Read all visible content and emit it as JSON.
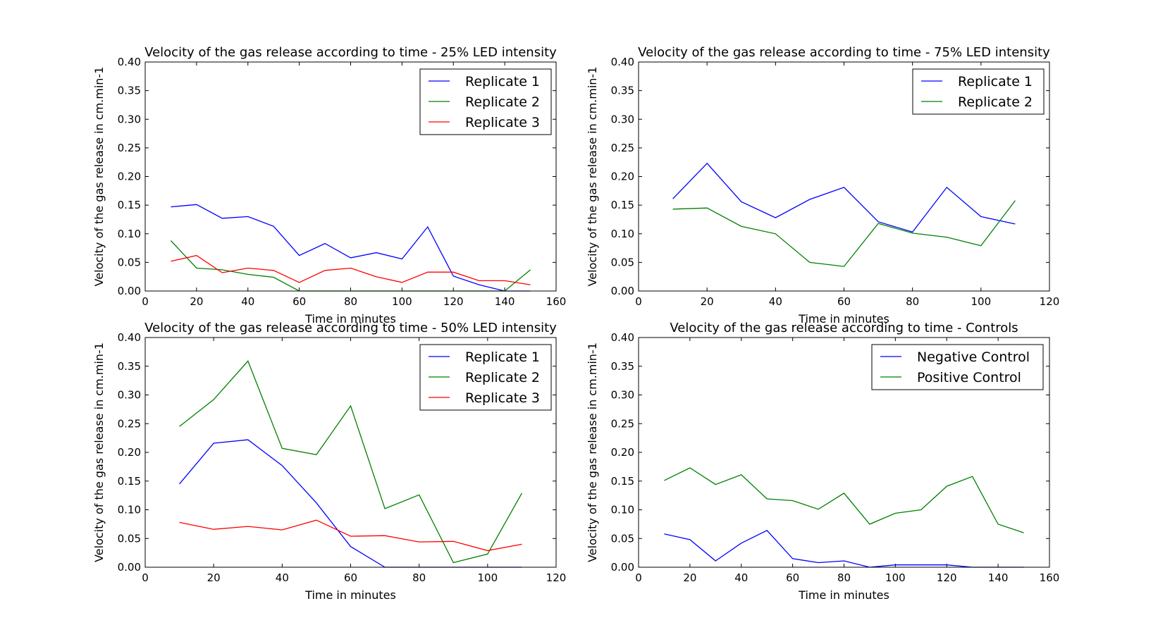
{
  "chart_data": [
    {
      "type": "line",
      "title": "Velocity of the gas release according to time - 25% LED intensity",
      "xlabel": "Time in minutes",
      "ylabel": "Velocity of the gas release in cm.min-1",
      "xlim": [
        0,
        160
      ],
      "ylim": [
        0,
        0.4
      ],
      "xticks": [
        0,
        20,
        40,
        60,
        80,
        100,
        120,
        140,
        160
      ],
      "xtick_labels": [
        "0",
        "20",
        "40",
        "60",
        "80",
        "100",
        "120",
        "140",
        "160"
      ],
      "yticks": [
        0,
        0.05,
        0.1,
        0.15,
        0.2,
        0.25,
        0.3,
        0.35,
        0.4
      ],
      "ytick_labels": [
        "0.00",
        "0.05",
        "0.10",
        "0.15",
        "0.20",
        "0.25",
        "0.30",
        "0.35",
        "0.40"
      ],
      "grid": false,
      "legend_position": "upper right",
      "x": [
        10,
        20,
        30,
        40,
        50,
        60,
        70,
        80,
        90,
        100,
        110,
        120,
        130,
        140,
        150
      ],
      "series": [
        {
          "name": "Replicate 1",
          "color": "#0000ff",
          "values": [
            0.147,
            0.151,
            0.127,
            0.13,
            0.113,
            0.062,
            0.083,
            0.058,
            0.067,
            0.056,
            0.112,
            0.026,
            0.011,
            0.0,
            0.0
          ]
        },
        {
          "name": "Replicate 2",
          "color": "#008000",
          "values": [
            0.088,
            0.04,
            0.037,
            0.029,
            0.024,
            0.0,
            0.0,
            0.0,
            0.0,
            0.0,
            0.0,
            0.0,
            0.0,
            0.0,
            0.037
          ]
        },
        {
          "name": "Replicate 3",
          "color": "#ff0000",
          "values": [
            0.052,
            0.062,
            0.032,
            0.04,
            0.036,
            0.015,
            0.036,
            0.04,
            0.025,
            0.015,
            0.033,
            0.033,
            0.018,
            0.018,
            0.011
          ]
        }
      ]
    },
    {
      "type": "line",
      "title": "Velocity of the gas release according to time - 75% LED intensity",
      "xlabel": "Time in minutes",
      "ylabel": "Velocity of the gas release in cm.min-1",
      "xlim": [
        0,
        120
      ],
      "ylim": [
        0,
        0.4
      ],
      "xticks": [
        0,
        20,
        40,
        60,
        80,
        100,
        120
      ],
      "xtick_labels": [
        "0",
        "20",
        "40",
        "60",
        "80",
        "100",
        "120"
      ],
      "yticks": [
        0,
        0.05,
        0.1,
        0.15,
        0.2,
        0.25,
        0.3,
        0.35,
        0.4
      ],
      "ytick_labels": [
        "0.00",
        "0.05",
        "0.10",
        "0.15",
        "0.20",
        "0.25",
        "0.30",
        "0.35",
        "0.40"
      ],
      "grid": false,
      "legend_position": "upper right",
      "x": [
        10,
        20,
        30,
        40,
        50,
        60,
        70,
        80,
        90,
        100,
        110
      ],
      "series": [
        {
          "name": "Replicate 1",
          "color": "#0000ff",
          "values": [
            0.161,
            0.223,
            0.156,
            0.128,
            0.16,
            0.181,
            0.121,
            0.103,
            0.181,
            0.13,
            0.117
          ]
        },
        {
          "name": "Replicate 2",
          "color": "#008000",
          "values": [
            0.143,
            0.145,
            0.113,
            0.1,
            0.05,
            0.043,
            0.118,
            0.101,
            0.094,
            0.079,
            0.158
          ]
        }
      ]
    },
    {
      "type": "line",
      "title": "Velocity of the gas release according to time - 50% LED intensity",
      "xlabel": "Time in minutes",
      "ylabel": "Velocity of the gas release in cm.min-1",
      "xlim": [
        0,
        120
      ],
      "ylim": [
        0,
        0.4
      ],
      "xticks": [
        0,
        20,
        40,
        60,
        80,
        100,
        120
      ],
      "xtick_labels": [
        "0",
        "20",
        "40",
        "60",
        "80",
        "100",
        "120"
      ],
      "yticks": [
        0,
        0.05,
        0.1,
        0.15,
        0.2,
        0.25,
        0.3,
        0.35,
        0.4
      ],
      "ytick_labels": [
        "0.00",
        "0.05",
        "0.10",
        "0.15",
        "0.20",
        "0.25",
        "0.30",
        "0.35",
        "0.40"
      ],
      "grid": false,
      "legend_position": "upper right",
      "x": [
        10,
        20,
        30,
        40,
        50,
        60,
        70,
        80,
        90,
        100,
        110
      ],
      "series": [
        {
          "name": "Replicate 1",
          "color": "#0000ff",
          "values": [
            0.145,
            0.216,
            0.222,
            0.177,
            0.112,
            0.036,
            0.0,
            0.0,
            0.0,
            0.0,
            0.0
          ]
        },
        {
          "name": "Replicate 2",
          "color": "#008000",
          "values": [
            0.245,
            0.292,
            0.359,
            0.207,
            0.196,
            0.281,
            0.102,
            0.126,
            0.008,
            0.023,
            0.129
          ]
        },
        {
          "name": "Replicate 3",
          "color": "#ff0000",
          "values": [
            0.078,
            0.066,
            0.071,
            0.065,
            0.082,
            0.054,
            0.055,
            0.044,
            0.045,
            0.029,
            0.04
          ]
        }
      ]
    },
    {
      "type": "line",
      "title": "Velocity of the gas release according to time - Controls",
      "xlabel": "Time in minutes",
      "ylabel": "Velocity of the gas release in cm.min-1",
      "xlim": [
        0,
        160
      ],
      "ylim": [
        0,
        0.4
      ],
      "xticks": [
        0,
        20,
        40,
        60,
        80,
        100,
        120,
        140,
        160
      ],
      "xtick_labels": [
        "0",
        "20",
        "40",
        "60",
        "80",
        "100",
        "120",
        "140",
        "160"
      ],
      "yticks": [
        0,
        0.05,
        0.1,
        0.15,
        0.2,
        0.25,
        0.3,
        0.35,
        0.4
      ],
      "ytick_labels": [
        "0.00",
        "0.05",
        "0.10",
        "0.15",
        "0.20",
        "0.25",
        "0.30",
        "0.35",
        "0.40"
      ],
      "grid": false,
      "legend_position": "upper right",
      "x": [
        10,
        20,
        30,
        40,
        50,
        60,
        70,
        80,
        90,
        100,
        110,
        120,
        130,
        140,
        150
      ],
      "series": [
        {
          "name": "Negative Control",
          "color": "#0000ff",
          "values": [
            0.058,
            0.048,
            0.011,
            0.042,
            0.064,
            0.015,
            0.008,
            0.011,
            0.0,
            0.004,
            0.004,
            0.004,
            0.0,
            0.0,
            0.0
          ]
        },
        {
          "name": "Positive Control",
          "color": "#008000",
          "values": [
            0.151,
            0.173,
            0.144,
            0.161,
            0.119,
            0.116,
            0.101,
            0.129,
            0.075,
            0.094,
            0.1,
            0.141,
            0.158,
            0.075,
            0.06
          ]
        }
      ]
    }
  ]
}
